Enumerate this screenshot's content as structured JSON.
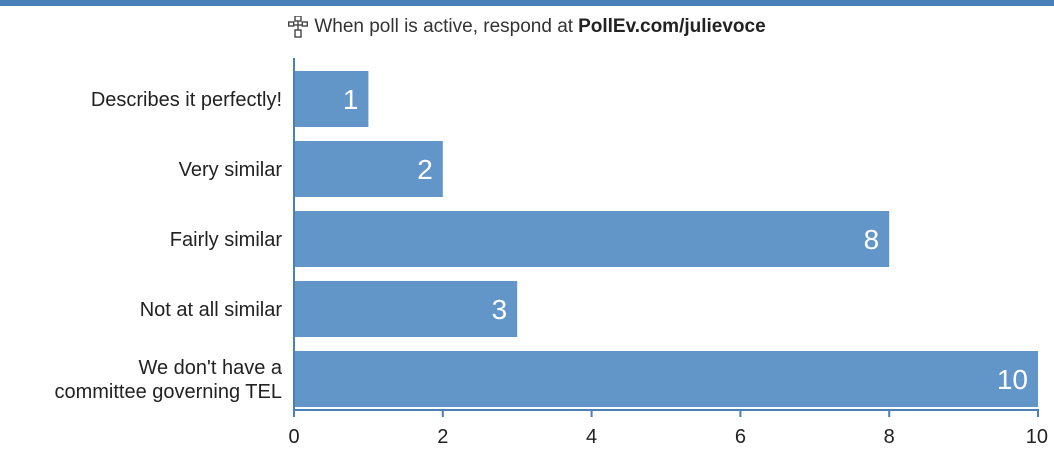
{
  "header": {
    "text": "When poll is active, respond at",
    "url": "PollEv.com/julievoce"
  },
  "colors": {
    "accent": "#4a7fb8",
    "bar": "#6296c8",
    "axis": "#4a7fb8"
  },
  "icons": {
    "header": "poll-network-icon"
  },
  "chart_data": {
    "type": "bar",
    "orientation": "horizontal",
    "categories": [
      [
        "Describes it perfectly!"
      ],
      [
        "Very similar"
      ],
      [
        "Fairly similar"
      ],
      [
        "Not at all similar"
      ],
      [
        "We don't have a",
        "committee governing TEL"
      ]
    ],
    "values": [
      1,
      2,
      8,
      3,
      10
    ],
    "xlim": [
      0,
      10
    ],
    "xticks": [
      0,
      2,
      4,
      6,
      8,
      10
    ],
    "title": "",
    "xlabel": "",
    "ylabel": "",
    "grid": false
  }
}
